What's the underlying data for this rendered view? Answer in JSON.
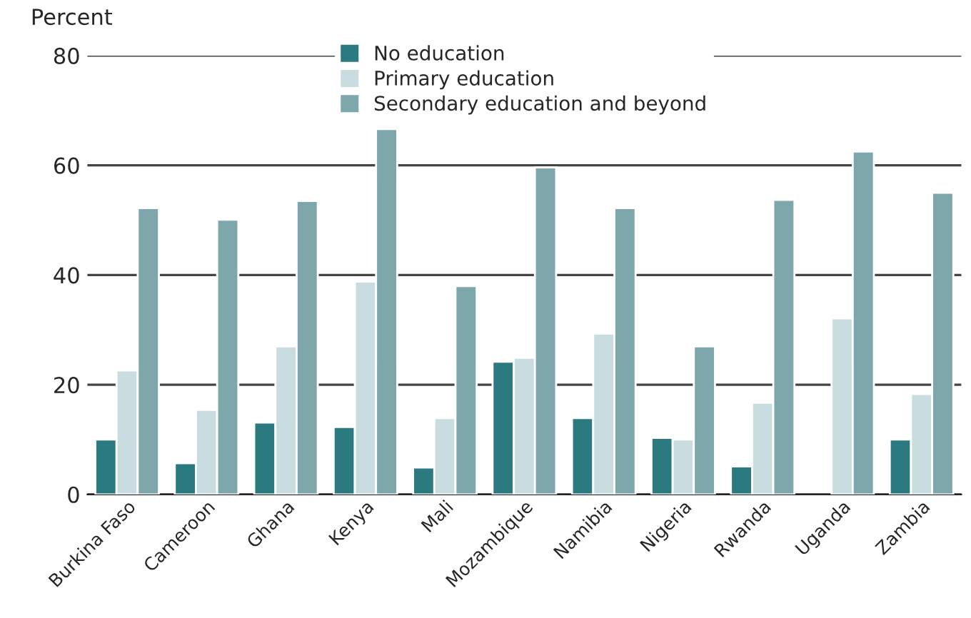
{
  "chart_data": {
    "type": "bar",
    "ylabel": "Percent",
    "categories": [
      "Burkina Faso",
      "Cameroon",
      "Ghana",
      "Kenya",
      "Mali",
      "Mozambique",
      "Namibia",
      "Nigeria",
      "Rwanda",
      "Uganda",
      "Zambia"
    ],
    "series": [
      {
        "name": "No education",
        "color": "#2a7a80",
        "values": [
          10.0,
          5.7,
          13.1,
          12.3,
          4.9,
          24.2,
          13.9,
          10.3,
          5.1,
          null,
          10.0
        ]
      },
      {
        "name": "Primary education",
        "color": "#c9dde0",
        "values": [
          22.6,
          15.4,
          27.0,
          38.8,
          13.9,
          24.9,
          29.3,
          10.0,
          16.7,
          32.1,
          18.3
        ]
      },
      {
        "name": "Secondary education and beyond",
        "color": "#7ea7ac",
        "values": [
          52.2,
          50.1,
          53.5,
          66.6,
          38.0,
          59.6,
          52.2,
          27.0,
          53.7,
          62.5,
          55.0
        ]
      }
    ],
    "ylim": [
      0,
      80
    ],
    "yticks": [
      0,
      20,
      40,
      60,
      80
    ],
    "grid": "y",
    "legend": "top"
  }
}
